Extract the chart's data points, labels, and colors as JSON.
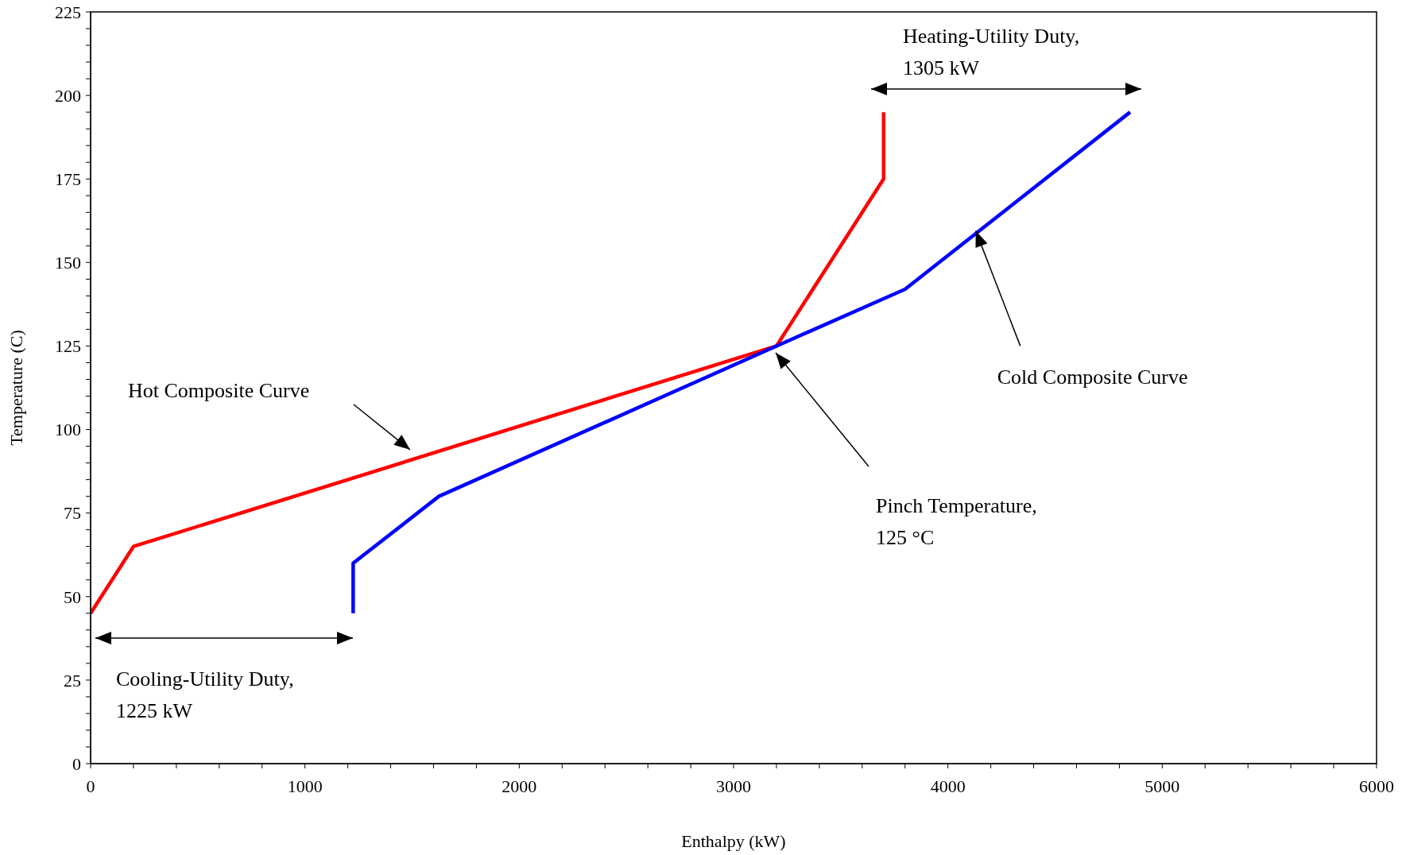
{
  "chart_data": {
    "type": "line",
    "xlabel": "Enthalpy (kW)",
    "ylabel": "Temperature (C)",
    "xlim": [
      0,
      6000
    ],
    "ylim": [
      0,
      225
    ],
    "xticks": [
      0,
      {
        "value": 200,
        "label": null
      },
      {
        "value": 400,
        "label": null
      },
      {
        "value": 600,
        "label": null
      },
      {
        "value": 800,
        "label": null
      },
      1000,
      {
        "value": 1200,
        "label": null
      },
      {
        "value": 1400,
        "label": null
      },
      {
        "value": 1600,
        "label": null
      },
      {
        "value": 1800,
        "label": null
      },
      2000,
      {
        "value": 2200,
        "label": null
      },
      {
        "value": 2400,
        "label": null
      },
      {
        "value": 2600,
        "label": null
      },
      {
        "value": 2800,
        "label": null
      },
      3000,
      {
        "value": 3200,
        "label": null
      },
      {
        "value": 3400,
        "label": null
      },
      {
        "value": 3600,
        "label": null
      },
      {
        "value": 3800,
        "label": null
      },
      4000,
      {
        "value": 4200,
        "label": null
      },
      {
        "value": 4400,
        "label": null
      },
      {
        "value": 4600,
        "label": null
      },
      {
        "value": 4800,
        "label": null
      },
      5000,
      {
        "value": 5200,
        "label": null
      },
      {
        "value": 5400,
        "label": null
      },
      {
        "value": 5600,
        "label": null
      },
      {
        "value": 5800,
        "label": null
      },
      6000
    ],
    "yticks": [
      0,
      {
        "value": 5,
        "label": null
      },
      {
        "value": 10,
        "label": null
      },
      {
        "value": 15,
        "label": null
      },
      {
        "value": 20,
        "label": null
      },
      25,
      {
        "value": 30,
        "label": null
      },
      {
        "value": 35,
        "label": null
      },
      {
        "value": 40,
        "label": null
      },
      {
        "value": 45,
        "label": null
      },
      50,
      {
        "value": 55,
        "label": null
      },
      {
        "value": 60,
        "label": null
      },
      {
        "value": 65,
        "label": null
      },
      {
        "value": 70,
        "label": null
      },
      75,
      {
        "value": 80,
        "label": null
      },
      {
        "value": 85,
        "label": null
      },
      {
        "value": 90,
        "label": null
      },
      {
        "value": 95,
        "label": null
      },
      100,
      {
        "value": 105,
        "label": null
      },
      {
        "value": 110,
        "label": null
      },
      {
        "value": 115,
        "label": null
      },
      {
        "value": 120,
        "label": null
      },
      125,
      {
        "value": 130,
        "label": null
      },
      {
        "value": 135,
        "label": null
      },
      {
        "value": 140,
        "label": null
      },
      {
        "value": 145,
        "label": null
      },
      150,
      {
        "value": 155,
        "label": null
      },
      {
        "value": 160,
        "label": null
      },
      {
        "value": 165,
        "label": null
      },
      {
        "value": 170,
        "label": null
      },
      175,
      {
        "value": 180,
        "label": null
      },
      {
        "value": 185,
        "label": null
      },
      {
        "value": 190,
        "label": null
      },
      {
        "value": 195,
        "label": null
      },
      200,
      {
        "value": 205,
        "label": null
      },
      {
        "value": 210,
        "label": null
      },
      {
        "value": 215,
        "label": null
      },
      {
        "value": 220,
        "label": null
      },
      225
    ],
    "grid": false,
    "legend": false,
    "marker": "none",
    "line_style": "solid",
    "series": [
      {
        "color": "#ff0000",
        "x": [
          0,
          200,
          3200,
          3700,
          3700
        ],
        "values": [
          45,
          65,
          125,
          175,
          195
        ]
      },
      {
        "color": "#0000ff",
        "x": [
          1225,
          1225,
          1625,
          3200,
          3800,
          4850
        ],
        "values": [
          45,
          60,
          80,
          125,
          142,
          195
        ]
      }
    ],
    "annotations": [
      "Hot Composite Curve",
      {
        "text": "Cold Composite Curve",
        "x": 4130,
        "y": 159.5
      },
      "Pinch Temperature,\n125 °C",
      "Heating-Utility Duty,\n1305 kW",
      "Cooling-Utility Duty,\n1225 kW"
    ]
  }
}
